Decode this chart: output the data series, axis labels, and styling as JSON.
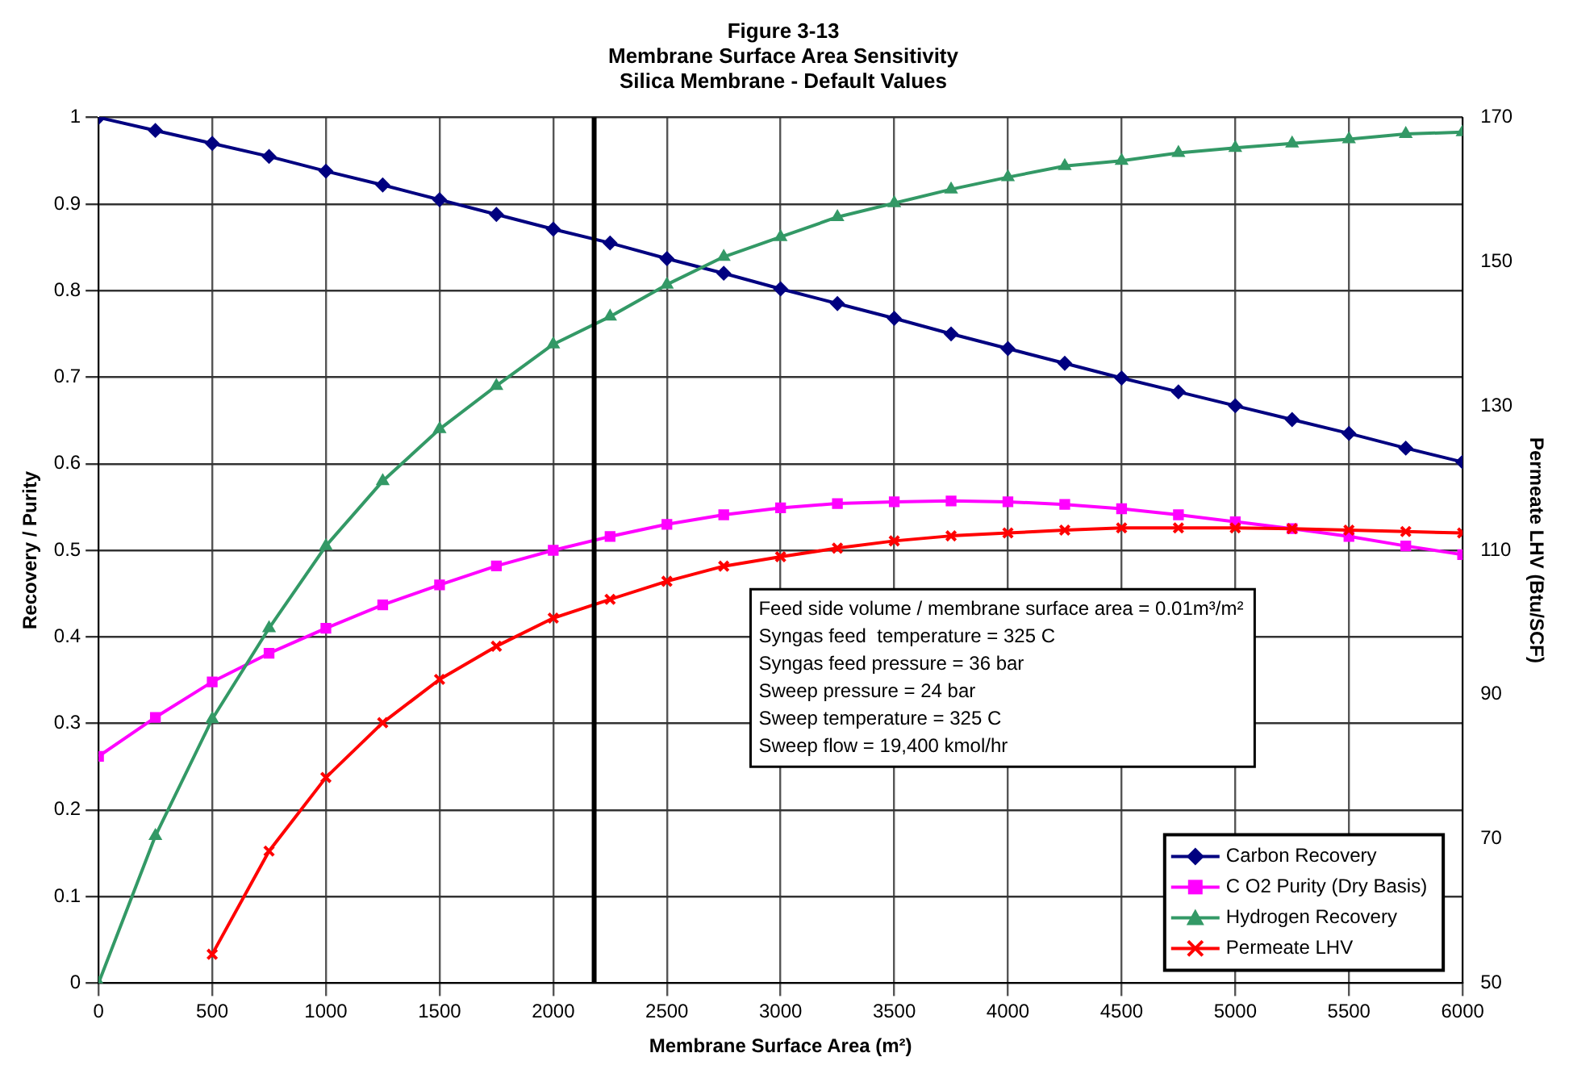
{
  "chart_data": {
    "type": "line",
    "title": [
      "Figure 3-13",
      "Membrane Surface Area Sensitivity",
      "Silica Membrane - Default Values"
    ],
    "xlabel": "Membrane Surface Area (m²)",
    "ylabel": "Recovery / Purity",
    "y2label": "Permeate LHV (Btu/SCF)",
    "x": [
      0,
      250,
      500,
      750,
      1000,
      1250,
      1500,
      1750,
      2000,
      2250,
      2500,
      2750,
      3000,
      3250,
      3500,
      3750,
      4000,
      4250,
      4500,
      4750,
      5000,
      5250,
      5500,
      5750,
      6000
    ],
    "series": [
      {
        "name": "Carbon Recovery",
        "color": "#000080",
        "marker": "diamond",
        "values": [
          1.0,
          0.985,
          0.97,
          0.955,
          0.938,
          0.922,
          0.905,
          0.888,
          0.871,
          0.855,
          0.837,
          0.82,
          0.802,
          0.785,
          0.768,
          0.75,
          0.733,
          0.716,
          0.699,
          0.683,
          0.667,
          0.651,
          0.635,
          0.618,
          0.602
        ]
      },
      {
        "name": "C O2 Purity (Dry Basis)",
        "color": "#ff00ff",
        "marker": "square",
        "values": [
          0.262,
          0.307,
          0.348,
          0.381,
          0.41,
          0.437,
          0.46,
          0.482,
          0.5,
          0.516,
          0.53,
          0.541,
          0.549,
          0.554,
          0.556,
          0.557,
          0.556,
          0.553,
          0.548,
          0.541,
          0.533,
          0.525,
          0.516,
          0.505,
          0.495
        ]
      },
      {
        "name": "Hydrogen Recovery",
        "color": "#339966",
        "marker": "triangle",
        "values": [
          0,
          0.17,
          0.305,
          0.41,
          0.505,
          0.58,
          0.64,
          0.69,
          0.738,
          0.77,
          0.807,
          0.839,
          0.862,
          0.885,
          0.901,
          0.917,
          0.931,
          0.944,
          0.95,
          0.959,
          0.965,
          0.97,
          0.975,
          0.981,
          0.983
        ]
      },
      {
        "name": "Permeate LHV",
        "color": "#ff0000",
        "marker": "cross",
        "axis": "y2",
        "values": [
          null,
          null,
          54,
          68.3,
          78.5,
          86.1,
          92.1,
          96.7,
          100.6,
          103.2,
          105.7,
          107.8,
          109.1,
          110.3,
          111.3,
          112,
          112.4,
          112.8,
          113.1,
          113.1,
          113.1,
          113,
          112.8,
          112.6,
          112.4
        ]
      }
    ],
    "xlim": [
      0,
      6000
    ],
    "xticks": [
      0,
      500,
      1000,
      1500,
      2000,
      2500,
      3000,
      3500,
      4000,
      4500,
      5000,
      5500,
      6000
    ],
    "ylim": [
      0,
      1
    ],
    "yticks": [
      0,
      0.1,
      0.2,
      0.3,
      0.4,
      0.5,
      0.6,
      0.7,
      0.8,
      0.9,
      1
    ],
    "y2lim": [
      50,
      170
    ],
    "y2ticks": [
      50,
      70,
      90,
      110,
      130,
      150,
      170
    ],
    "ref_lines": [
      {
        "axis": "x",
        "value": 2180,
        "color": "#000000"
      }
    ],
    "annotations": [
      "Feed side volume / membrane surface area = 0.01m³/m²",
      "Syngas feed  temperature = 325 C",
      "Syngas feed pressure = 36 bar",
      "Sweep pressure = 24 bar",
      "Sweep temperature = 325 C",
      "Sweep flow = 19,400 kmol/hr"
    ],
    "grid": true,
    "legend": "bottom right",
    "line_style": "solid"
  }
}
